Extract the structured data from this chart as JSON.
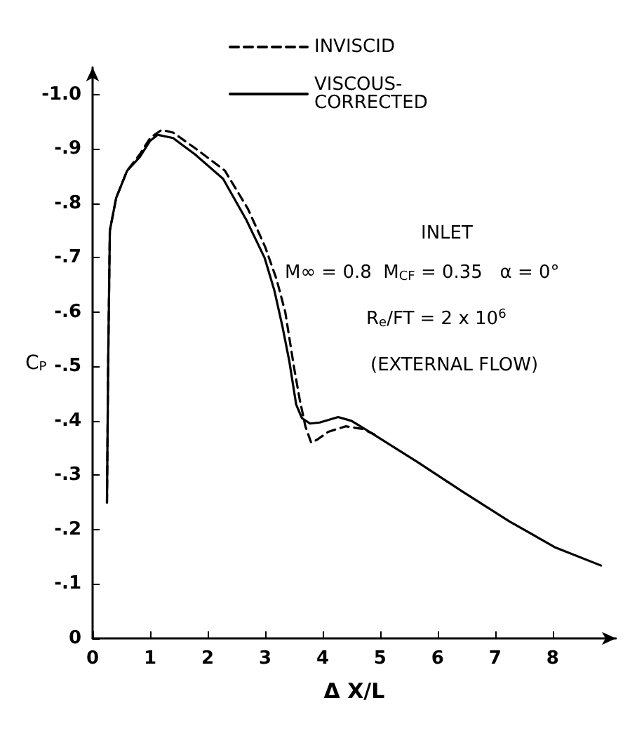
{
  "chart_data": {
    "type": "line",
    "xlabel": "Δ X/L",
    "ylabel": "C$_{P}$",
    "xlim": [
      0,
      9.1
    ],
    "ylim": [
      0,
      -1.05
    ],
    "xticks": [
      0,
      1,
      2,
      3,
      4,
      5,
      6,
      7,
      8
    ],
    "yticks": [
      0,
      {
        "value": -0.1,
        "label": "-.1"
      },
      {
        "value": -0.2,
        "label": "-.2"
      },
      {
        "value": -0.3,
        "label": "-.3"
      },
      {
        "value": -0.4,
        "label": "-.4"
      },
      {
        "value": -0.5,
        "label": "-.5"
      },
      {
        "value": -0.6,
        "label": "-.6"
      },
      {
        "value": -0.7,
        "label": "-.7"
      },
      {
        "value": -0.8,
        "label": "-.8"
      },
      {
        "value": -0.9,
        "label": "-.9"
      },
      {
        "value": -1.0,
        "label": "-1.0"
      }
    ],
    "grid": false,
    "legend": "top",
    "marker": "none",
    "series": [
      {
        "name": "INVISCID",
        "color": "#000000",
        "line_style": "dashed",
        "x": [
          0.25,
          0.27,
          0.3,
          0.41,
          0.6,
          0.82,
          1.0,
          1.2,
          1.4,
          1.8,
          2.3,
          2.7,
          3.0,
          3.2,
          3.35,
          3.5,
          3.6,
          3.7,
          3.8,
          3.9,
          4.1,
          4.4,
          4.7,
          4.9
        ],
        "values": [
          -0.25,
          -0.5,
          -0.75,
          -0.81,
          -0.86,
          -0.89,
          -0.92,
          -0.935,
          -0.93,
          -0.9,
          -0.86,
          -0.79,
          -0.72,
          -0.66,
          -0.6,
          -0.5,
          -0.44,
          -0.39,
          -0.36,
          -0.365,
          -0.38,
          -0.39,
          -0.385,
          -0.375
        ]
      },
      {
        "name": "VISCOUS-\nCORRECTED",
        "color": "#000000",
        "line_style": "solid",
        "x": [
          0.25,
          0.27,
          0.3,
          0.41,
          0.6,
          0.82,
          1.0,
          1.13,
          1.4,
          1.78,
          2.27,
          2.67,
          2.99,
          3.16,
          3.3,
          3.42,
          3.54,
          3.64,
          3.78,
          3.95,
          4.27,
          4.5,
          4.84,
          5.64,
          6.43,
          7.25,
          8.05,
          8.84
        ],
        "values": [
          -0.25,
          -0.5,
          -0.75,
          -0.81,
          -0.86,
          -0.885,
          -0.915,
          -0.926,
          -0.92,
          -0.89,
          -0.845,
          -0.77,
          -0.7,
          -0.64,
          -0.574,
          -0.51,
          -0.43,
          -0.405,
          -0.395,
          -0.397,
          -0.407,
          -0.4,
          -0.378,
          -0.325,
          -0.27,
          -0.215,
          -0.167,
          -0.134
        ]
      }
    ],
    "annotations": [
      "INLET",
      "M∞ = 0.8  M$_{CF}$ = 0.35   α = 0°",
      "R$_{e}$/FT = 2 x 10$^{6}$",
      "(EXTERNAL FLOW)"
    ]
  }
}
